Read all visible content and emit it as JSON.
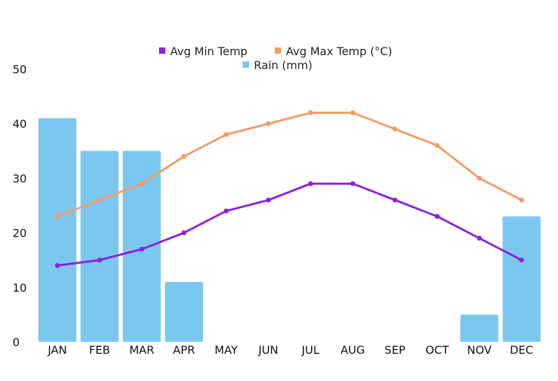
{
  "chart_data": {
    "type": "bar",
    "categories": [
      "JAN",
      "FEB",
      "MAR",
      "APR",
      "MAY",
      "JUN",
      "JUL",
      "AUG",
      "SEP",
      "OCT",
      "NOV",
      "DEC"
    ],
    "ylim": [
      0,
      50
    ],
    "yticks": [
      "0",
      "10",
      "20",
      "30",
      "40",
      "50"
    ],
    "grid": false,
    "legend_position": "top-center",
    "series": [
      {
        "name": "Rain (mm)",
        "type": "bar",
        "color": "#7cc7ef",
        "values": [
          41,
          35,
          35,
          11,
          0,
          0,
          0,
          0,
          0,
          0,
          5,
          23
        ]
      },
      {
        "name": "Avg Min Temp",
        "type": "line",
        "color": "#8a21e0",
        "values": [
          14,
          15,
          17,
          20,
          24,
          26,
          29,
          29,
          26,
          23,
          19,
          15
        ]
      },
      {
        "name": "Avg Max Temp (°C)",
        "type": "line",
        "color": "#f39a66",
        "values": [
          23,
          26,
          29,
          34,
          38,
          40,
          42,
          42,
          39,
          36,
          30,
          26
        ]
      }
    ]
  }
}
